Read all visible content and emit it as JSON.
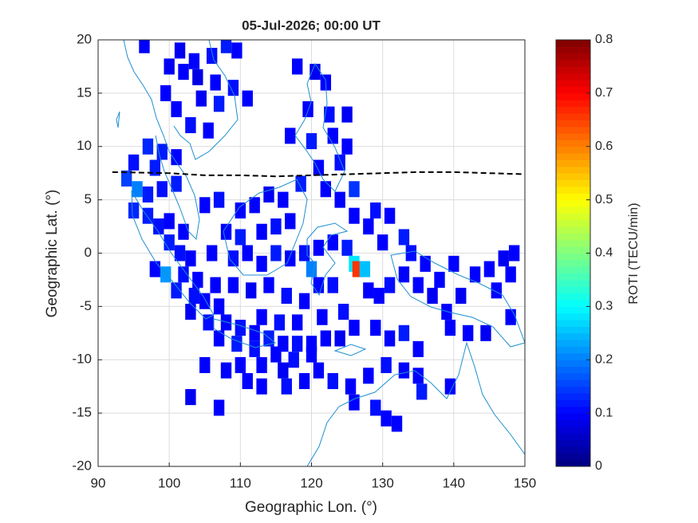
{
  "chart_data": {
    "type": "heatmap",
    "title": "05-Jul-2026; 00:00 UT",
    "xlabel": "Geographic Lon. (°)",
    "ylabel": "Geographic Lat. (°)",
    "xlim": [
      90,
      150
    ],
    "ylim": [
      -20,
      20
    ],
    "xticks": [
      90,
      100,
      110,
      120,
      130,
      140,
      150
    ],
    "yticks": [
      -20,
      -15,
      -10,
      -5,
      0,
      5,
      10,
      15,
      20
    ],
    "grid": true,
    "colormap": "jet",
    "colorbar": {
      "label": "ROTI (TECU/min)",
      "lim": [
        0,
        0.8
      ],
      "ticks": [
        0,
        0.1,
        0.2,
        0.3,
        0.4,
        0.5,
        0.6,
        0.7,
        0.8
      ]
    },
    "magnetic_equator": {
      "lon": [
        92,
        100,
        105,
        110,
        115,
        120,
        125,
        130,
        135,
        140,
        145,
        150
      ],
      "lat": [
        7.6,
        7.5,
        7.3,
        7.3,
        7.2,
        7.3,
        7.4,
        7.5,
        7.6,
        7.6,
        7.5,
        7.4
      ]
    },
    "cells": [
      {
        "lon": 96.5,
        "lat": 19.5,
        "value": 0.1
      },
      {
        "lon": 101.5,
        "lat": 19,
        "value": 0.09
      },
      {
        "lon": 103.5,
        "lat": 18,
        "value": 0.1
      },
      {
        "lon": 106,
        "lat": 18.5,
        "value": 0.11
      },
      {
        "lon": 108,
        "lat": 19.5,
        "value": 0.12
      },
      {
        "lon": 109.5,
        "lat": 19,
        "value": 0.1
      },
      {
        "lon": 100,
        "lat": 17.5,
        "value": 0.09
      },
      {
        "lon": 102,
        "lat": 17,
        "value": 0.1
      },
      {
        "lon": 104,
        "lat": 16.5,
        "value": 0.08
      },
      {
        "lon": 106.5,
        "lat": 16,
        "value": 0.1
      },
      {
        "lon": 109,
        "lat": 15.5,
        "value": 0.11
      },
      {
        "lon": 99.5,
        "lat": 15,
        "value": 0.1
      },
      {
        "lon": 104.5,
        "lat": 14.5,
        "value": 0.09
      },
      {
        "lon": 107,
        "lat": 14,
        "value": 0.12
      },
      {
        "lon": 111,
        "lat": 14.5,
        "value": 0.1
      },
      {
        "lon": 101,
        "lat": 13.5,
        "value": 0.1
      },
      {
        "lon": 103,
        "lat": 12,
        "value": 0.11
      },
      {
        "lon": 105.5,
        "lat": 11.5,
        "value": 0.1
      },
      {
        "lon": 97,
        "lat": 10,
        "value": 0.13
      },
      {
        "lon": 99,
        "lat": 9.5,
        "value": 0.12
      },
      {
        "lon": 101,
        "lat": 9,
        "value": 0.1
      },
      {
        "lon": 98,
        "lat": 8,
        "value": 0.12
      },
      {
        "lon": 95,
        "lat": 8.5,
        "value": 0.11
      },
      {
        "lon": 118,
        "lat": 17.5,
        "value": 0.1
      },
      {
        "lon": 120.5,
        "lat": 17,
        "value": 0.09
      },
      {
        "lon": 122,
        "lat": 16,
        "value": 0.1
      },
      {
        "lon": 119.5,
        "lat": 13.5,
        "value": 0.1
      },
      {
        "lon": 122.5,
        "lat": 13,
        "value": 0.11
      },
      {
        "lon": 125,
        "lat": 13,
        "value": 0.09
      },
      {
        "lon": 117,
        "lat": 11,
        "value": 0.1
      },
      {
        "lon": 120,
        "lat": 10.5,
        "value": 0.12
      },
      {
        "lon": 123,
        "lat": 11,
        "value": 0.1
      },
      {
        "lon": 125,
        "lat": 10,
        "value": 0.1
      },
      {
        "lon": 124,
        "lat": 8.5,
        "value": 0.11
      },
      {
        "lon": 121,
        "lat": 8,
        "value": 0.1
      },
      {
        "lon": 118.5,
        "lat": 6.5,
        "value": 0.12
      },
      {
        "lon": 122,
        "lat": 6,
        "value": 0.1
      },
      {
        "lon": 126,
        "lat": 6,
        "value": 0.14
      },
      {
        "lon": 124,
        "lat": 5,
        "value": 0.1
      },
      {
        "lon": 94,
        "lat": 7,
        "value": 0.15
      },
      {
        "lon": 95.5,
        "lat": 6,
        "value": 0.2
      },
      {
        "lon": 97,
        "lat": 5.5,
        "value": 0.12
      },
      {
        "lon": 99,
        "lat": 6,
        "value": 0.11
      },
      {
        "lon": 101,
        "lat": 6.5,
        "value": 0.12
      },
      {
        "lon": 95,
        "lat": 4,
        "value": 0.13
      },
      {
        "lon": 97,
        "lat": 3.5,
        "value": 0.12
      },
      {
        "lon": 98.5,
        "lat": 2.5,
        "value": 0.11
      },
      {
        "lon": 100,
        "lat": 3,
        "value": 0.1
      },
      {
        "lon": 102,
        "lat": 2,
        "value": 0.1
      },
      {
        "lon": 100,
        "lat": 1,
        "value": 0.12
      },
      {
        "lon": 101.5,
        "lat": 0,
        "value": 0.11
      },
      {
        "lon": 103,
        "lat": -0.5,
        "value": 0.1
      },
      {
        "lon": 98,
        "lat": -1.5,
        "value": 0.1
      },
      {
        "lon": 99.5,
        "lat": -2,
        "value": 0.22
      },
      {
        "lon": 102,
        "lat": -2,
        "value": 0.11
      },
      {
        "lon": 104,
        "lat": -2.5,
        "value": 0.1
      },
      {
        "lon": 101,
        "lat": -3.5,
        "value": 0.12
      },
      {
        "lon": 103.5,
        "lat": -4,
        "value": 0.11
      },
      {
        "lon": 105,
        "lat": -4.5,
        "value": 0.1
      },
      {
        "lon": 107,
        "lat": -5,
        "value": 0.1
      },
      {
        "lon": 103,
        "lat": -5.5,
        "value": 0.09
      },
      {
        "lon": 105.5,
        "lat": -6.5,
        "value": 0.11
      },
      {
        "lon": 108,
        "lat": -6.5,
        "value": 0.1
      },
      {
        "lon": 110,
        "lat": -7,
        "value": 0.11
      },
      {
        "lon": 112,
        "lat": -7.5,
        "value": 0.1
      },
      {
        "lon": 114,
        "lat": -8,
        "value": 0.12
      },
      {
        "lon": 116,
        "lat": -8.5,
        "value": 0.1
      },
      {
        "lon": 118,
        "lat": -8.5,
        "value": 0.11
      },
      {
        "lon": 120,
        "lat": -8.5,
        "value": 0.1
      },
      {
        "lon": 122,
        "lat": -8,
        "value": 0.1
      },
      {
        "lon": 124,
        "lat": -8,
        "value": 0.09
      },
      {
        "lon": 107,
        "lat": -8,
        "value": 0.1
      },
      {
        "lon": 109.5,
        "lat": -8.5,
        "value": 0.12
      },
      {
        "lon": 112,
        "lat": -9,
        "value": 0.11
      },
      {
        "lon": 115,
        "lat": -9.5,
        "value": 0.1
      },
      {
        "lon": 117.5,
        "lat": -10,
        "value": 0.11
      },
      {
        "lon": 120,
        "lat": -9.5,
        "value": 0.1
      },
      {
        "lon": 110,
        "lat": -10.5,
        "value": 0.1
      },
      {
        "lon": 113,
        "lat": -10.5,
        "value": 0.1
      },
      {
        "lon": 116,
        "lat": -11,
        "value": 0.09
      },
      {
        "lon": 108,
        "lat": -11,
        "value": 0.1
      },
      {
        "lon": 105,
        "lat": -10.5,
        "value": 0.1
      },
      {
        "lon": 103,
        "lat": -13.5,
        "value": 0.09
      },
      {
        "lon": 107,
        "lat": -14.5,
        "value": 0.1
      },
      {
        "lon": 105,
        "lat": 4.5,
        "value": 0.1
      },
      {
        "lon": 107,
        "lat": 5,
        "value": 0.11
      },
      {
        "lon": 110,
        "lat": 4,
        "value": 0.1
      },
      {
        "lon": 112,
        "lat": 4.5,
        "value": 0.1
      },
      {
        "lon": 114,
        "lat": 5.5,
        "value": 0.09
      },
      {
        "lon": 116,
        "lat": 5,
        "value": 0.1
      },
      {
        "lon": 108,
        "lat": 2,
        "value": 0.1
      },
      {
        "lon": 110,
        "lat": 1.5,
        "value": 0.12
      },
      {
        "lon": 113,
        "lat": 2,
        "value": 0.1
      },
      {
        "lon": 115,
        "lat": 2.5,
        "value": 0.11
      },
      {
        "lon": 117,
        "lat": 3,
        "value": 0.1
      },
      {
        "lon": 106,
        "lat": 0,
        "value": 0.1
      },
      {
        "lon": 109,
        "lat": -0.5,
        "value": 0.11
      },
      {
        "lon": 111,
        "lat": 0,
        "value": 0.1
      },
      {
        "lon": 113,
        "lat": -1,
        "value": 0.1
      },
      {
        "lon": 115,
        "lat": 0,
        "value": 0.12
      },
      {
        "lon": 117,
        "lat": -0.5,
        "value": 0.1
      },
      {
        "lon": 119,
        "lat": 0,
        "value": 0.11
      },
      {
        "lon": 106.5,
        "lat": -3,
        "value": 0.1
      },
      {
        "lon": 109,
        "lat": -3,
        "value": 0.1
      },
      {
        "lon": 111.5,
        "lat": -3.5,
        "value": 0.09
      },
      {
        "lon": 114,
        "lat": -3,
        "value": 0.1
      },
      {
        "lon": 116.5,
        "lat": -4,
        "value": 0.11
      },
      {
        "lon": 119,
        "lat": -4.5,
        "value": 0.1
      },
      {
        "lon": 121,
        "lat": -3,
        "value": 0.1
      },
      {
        "lon": 123,
        "lat": -3,
        "value": 0.11
      },
      {
        "lon": 121,
        "lat": 0.5,
        "value": 0.1
      },
      {
        "lon": 123,
        "lat": 1,
        "value": 0.1
      },
      {
        "lon": 125,
        "lat": 0.5,
        "value": 0.12
      },
      {
        "lon": 120,
        "lat": -1.5,
        "value": 0.2
      },
      {
        "lon": 126,
        "lat": -1,
        "value": 0.28
      },
      {
        "lon": 126.5,
        "lat": -1.5,
        "value": 0.66
      },
      {
        "lon": 127.5,
        "lat": -1.5,
        "value": 0.25
      },
      {
        "lon": 128,
        "lat": -3.5,
        "value": 0.1
      },
      {
        "lon": 129.5,
        "lat": -4,
        "value": 0.1
      },
      {
        "lon": 131,
        "lat": -3,
        "value": 0.11
      },
      {
        "lon": 133,
        "lat": -2,
        "value": 0.1
      },
      {
        "lon": 135,
        "lat": -3,
        "value": 0.1
      },
      {
        "lon": 137,
        "lat": -4,
        "value": 0.09
      },
      {
        "lon": 136,
        "lat": -1,
        "value": 0.1
      },
      {
        "lon": 134,
        "lat": 0,
        "value": 0.11
      },
      {
        "lon": 130,
        "lat": 1,
        "value": 0.1
      },
      {
        "lon": 128,
        "lat": 2.5,
        "value": 0.1
      },
      {
        "lon": 126,
        "lat": 3.5,
        "value": 0.1
      },
      {
        "lon": 129,
        "lat": 4,
        "value": 0.11
      },
      {
        "lon": 131,
        "lat": 3.5,
        "value": 0.1
      },
      {
        "lon": 133,
        "lat": 1.5,
        "value": 0.12
      },
      {
        "lon": 138,
        "lat": -2.5,
        "value": 0.1
      },
      {
        "lon": 140,
        "lat": -1,
        "value": 0.1
      },
      {
        "lon": 141,
        "lat": -4,
        "value": 0.09
      },
      {
        "lon": 139,
        "lat": -5.5,
        "value": 0.1
      },
      {
        "lon": 143,
        "lat": -2,
        "value": 0.1
      },
      {
        "lon": 145,
        "lat": -1.5,
        "value": 0.1
      },
      {
        "lon": 147,
        "lat": -0.5,
        "value": 0.09
      },
      {
        "lon": 148.5,
        "lat": 0,
        "value": 0.1
      },
      {
        "lon": 148,
        "lat": -2,
        "value": 0.1
      },
      {
        "lon": 146,
        "lat": -3.5,
        "value": 0.1
      },
      {
        "lon": 139.5,
        "lat": -7,
        "value": 0.1
      },
      {
        "lon": 142,
        "lat": -7.5,
        "value": 0.1
      },
      {
        "lon": 144.5,
        "lat": -7.5,
        "value": 0.09
      },
      {
        "lon": 148,
        "lat": -6,
        "value": 0.1
      },
      {
        "lon": 121,
        "lat": -11,
        "value": 0.1
      },
      {
        "lon": 123,
        "lat": -12,
        "value": 0.11
      },
      {
        "lon": 125.5,
        "lat": -12.5,
        "value": 0.1
      },
      {
        "lon": 128,
        "lat": -11.5,
        "value": 0.1
      },
      {
        "lon": 130.5,
        "lat": -10.5,
        "value": 0.11
      },
      {
        "lon": 133,
        "lat": -11,
        "value": 0.1
      },
      {
        "lon": 135,
        "lat": -11.5,
        "value": 0.1
      },
      {
        "lon": 126,
        "lat": -14,
        "value": 0.1
      },
      {
        "lon": 129,
        "lat": -14.5,
        "value": 0.11
      },
      {
        "lon": 130.5,
        "lat": -15.5,
        "value": 0.1
      },
      {
        "lon": 132,
        "lat": -16,
        "value": 0.1
      },
      {
        "lon": 135.5,
        "lat": -13,
        "value": 0.12
      },
      {
        "lon": 139.5,
        "lat": -12.5,
        "value": 0.1
      },
      {
        "lon": 119,
        "lat": -12,
        "value": 0.1
      },
      {
        "lon": 116.5,
        "lat": -12.5,
        "value": 0.11
      },
      {
        "lon": 113,
        "lat": -12.5,
        "value": 0.1
      },
      {
        "lon": 111,
        "lat": -12,
        "value": 0.1
      },
      {
        "lon": 118,
        "lat": -6.5,
        "value": 0.1
      },
      {
        "lon": 121.5,
        "lat": -6,
        "value": 0.1
      },
      {
        "lon": 124.5,
        "lat": -5.5,
        "value": 0.11
      },
      {
        "lon": 126,
        "lat": -7,
        "value": 0.1
      },
      {
        "lon": 129,
        "lat": -7,
        "value": 0.1
      },
      {
        "lon": 131,
        "lat": -8,
        "value": 0.1
      },
      {
        "lon": 133,
        "lat": -7.5,
        "value": 0.12
      },
      {
        "lon": 135,
        "lat": -9,
        "value": 0.1
      },
      {
        "lon": 113,
        "lat": -6,
        "value": 0.1
      },
      {
        "lon": 115.5,
        "lat": -6.5,
        "value": 0.11
      }
    ]
  }
}
